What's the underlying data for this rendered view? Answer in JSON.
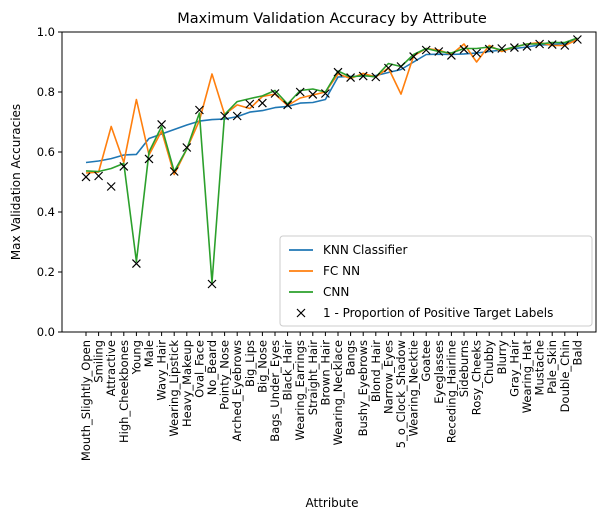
{
  "chart_data": {
    "type": "line",
    "title": "Maximum Validation Accuracy by Attribute",
    "xlabel": "Attribute",
    "ylabel": "Max Validation Accuracies",
    "ylim": [
      0.0,
      1.0
    ],
    "yticks": [
      "0.0",
      "0.2",
      "0.4",
      "0.6",
      "0.8",
      "1.0"
    ],
    "grid": false,
    "legend_position": "lower-right",
    "categories": [
      "Mouth_Slightly_Open",
      "Smiling",
      "Attractive",
      "High_Cheekbones",
      "Young",
      "Male",
      "Wavy_Hair",
      "Wearing_Lipstick",
      "Heavy_Makeup",
      "Oval_Face",
      "No_Beard",
      "Pointy_Nose",
      "Arched_Eyebrows",
      "Big_Lips",
      "Big_Nose",
      "Bags_Under_Eyes",
      "Black_Hair",
      "Wearing_Earrings",
      "Straight_Hair",
      "Brown_Hair",
      "Wearing_Necklace",
      "Bangs",
      "Bushy_Eyebrows",
      "Blond_Hair",
      "Narrow_Eyes",
      "5_o_Clock_Shadow",
      "Wearing_Necktie",
      "Goatee",
      "Eyeglasses",
      "Receding_Hairline",
      "Sideburns",
      "Rosy_Cheeks",
      "Chubby",
      "Blurry",
      "Gray_Hair",
      "Wearing_Hat",
      "Mustache",
      "Pale_Skin",
      "Double_Chin",
      "Bald"
    ],
    "series": [
      {
        "name": "KNN Classifier",
        "style": "line",
        "color": "#1f77b4",
        "values": [
          0.565,
          0.57,
          0.578,
          0.59,
          0.592,
          0.645,
          0.66,
          0.675,
          0.69,
          0.703,
          0.708,
          0.71,
          0.718,
          0.733,
          0.738,
          0.748,
          0.752,
          0.763,
          0.765,
          0.775,
          0.85,
          0.852,
          0.853,
          0.855,
          0.865,
          0.875,
          0.9,
          0.925,
          0.926,
          0.925,
          0.927,
          0.93,
          0.935,
          0.94,
          0.945,
          0.95,
          0.957,
          0.958,
          0.962,
          0.977
        ]
      },
      {
        "name": "FC NN",
        "style": "line",
        "color": "#ff7f0e",
        "values": [
          0.53,
          0.533,
          0.685,
          0.565,
          0.775,
          0.59,
          0.67,
          0.525,
          0.61,
          0.705,
          0.86,
          0.725,
          0.757,
          0.745,
          0.785,
          0.793,
          0.755,
          0.78,
          0.79,
          0.8,
          0.86,
          0.845,
          0.862,
          0.85,
          0.88,
          0.793,
          0.92,
          0.945,
          0.94,
          0.925,
          0.96,
          0.9,
          0.955,
          0.935,
          0.95,
          0.96,
          0.965,
          0.955,
          0.955,
          0.975
        ]
      },
      {
        "name": "CNN",
        "style": "line",
        "color": "#2ca02c",
        "values": [
          0.537,
          0.535,
          0.545,
          0.562,
          0.235,
          0.6,
          0.685,
          0.535,
          0.61,
          0.73,
          0.165,
          0.725,
          0.768,
          0.778,
          0.787,
          0.805,
          0.76,
          0.805,
          0.81,
          0.8,
          0.87,
          0.85,
          0.855,
          0.85,
          0.895,
          0.885,
          0.925,
          0.945,
          0.935,
          0.93,
          0.945,
          0.945,
          0.95,
          0.94,
          0.95,
          0.96,
          0.96,
          0.965,
          0.965,
          0.98
        ]
      },
      {
        "name": "1 - Proportion of Positive Target Labels",
        "style": "marker-x",
        "color": "#000000",
        "values": [
          0.517,
          0.52,
          0.485,
          0.552,
          0.228,
          0.577,
          0.692,
          0.535,
          0.615,
          0.74,
          0.16,
          0.72,
          0.72,
          0.76,
          0.763,
          0.795,
          0.757,
          0.8,
          0.792,
          0.795,
          0.866,
          0.848,
          0.853,
          0.85,
          0.88,
          0.885,
          0.918,
          0.94,
          0.935,
          0.922,
          0.942,
          0.93,
          0.943,
          0.945,
          0.948,
          0.952,
          0.96,
          0.958,
          0.955,
          0.975
        ]
      }
    ]
  }
}
